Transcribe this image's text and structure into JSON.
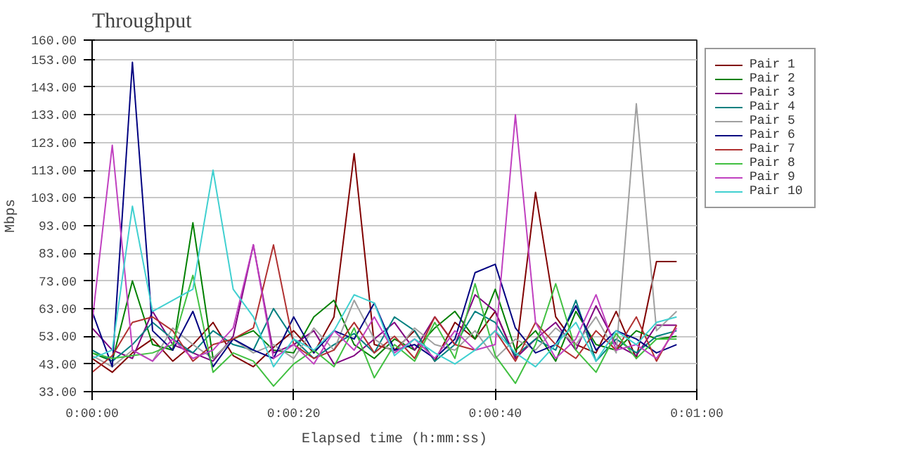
{
  "chart_data": {
    "type": "line",
    "title": "Throughput",
    "xlabel": "Elapsed time (h:mm:ss)",
    "ylabel": "Mbps",
    "x": [
      0,
      2,
      4,
      6,
      8,
      10,
      12,
      14,
      16,
      18,
      20,
      22,
      24,
      26,
      28,
      30,
      32,
      34,
      36,
      38,
      40,
      42,
      44,
      46,
      48,
      50,
      52,
      54,
      56,
      58
    ],
    "xlim": [
      0,
      60
    ],
    "xticks": [
      {
        "value": 0,
        "label": "0:00:00"
      },
      {
        "value": 20,
        "label": "0:00:20"
      },
      {
        "value": 40,
        "label": "0:00:40"
      },
      {
        "value": 60,
        "label": "0:01:00"
      }
    ],
    "ylim": [
      33,
      160
    ],
    "yticks": [
      {
        "value": 33,
        "label": "33.00"
      },
      {
        "value": 43,
        "label": "43.00"
      },
      {
        "value": 53,
        "label": "53.00"
      },
      {
        "value": 63,
        "label": "63.00"
      },
      {
        "value": 73,
        "label": "73.00"
      },
      {
        "value": 83,
        "label": "83.00"
      },
      {
        "value": 93,
        "label": "93.00"
      },
      {
        "value": 103,
        "label": "103.00"
      },
      {
        "value": 113,
        "label": "113.00"
      },
      {
        "value": 123,
        "label": "123.00"
      },
      {
        "value": 133,
        "label": "133.00"
      },
      {
        "value": 143,
        "label": "143.00"
      },
      {
        "value": 153,
        "label": "153.00"
      },
      {
        "value": 160,
        "label": "160.00"
      }
    ],
    "grid": true,
    "legend": "right",
    "line_style": "solid",
    "series": [
      {
        "name": "Pair 1",
        "color": "#800000",
        "values": [
          45,
          40,
          47,
          52,
          44,
          50,
          58,
          46,
          42,
          49,
          55,
          47,
          60,
          119,
          50,
          48,
          55,
          44,
          58,
          52,
          62,
          45,
          105,
          60,
          50,
          47,
          62,
          45,
          80,
          80
        ]
      },
      {
        "name": "Pair 2",
        "color": "#008000",
        "values": [
          47,
          44,
          73,
          50,
          48,
          94,
          45,
          52,
          55,
          48,
          47,
          60,
          66,
          50,
          45,
          52,
          48,
          56,
          62,
          52,
          70,
          48,
          55,
          44,
          62,
          50,
          48,
          55,
          52,
          53
        ]
      },
      {
        "name": "Pair 3",
        "color": "#800080",
        "values": [
          56,
          48,
          45,
          62,
          50,
          47,
          44,
          53,
          86,
          47,
          50,
          55,
          43,
          46,
          52,
          58,
          48,
          60,
          50,
          68,
          62,
          45,
          52,
          58,
          48,
          64,
          50,
          46,
          57,
          57
        ]
      },
      {
        "name": "Pair 4",
        "color": "#008080",
        "values": [
          48,
          44,
          50,
          58,
          52,
          47,
          55,
          50,
          48,
          63,
          52,
          45,
          50,
          54,
          47,
          60,
          55,
          44,
          50,
          62,
          58,
          46,
          52,
          48,
          66,
          44,
          52,
          47,
          53,
          55
        ]
      },
      {
        "name": "Pair 5",
        "color": "#a0a0a0",
        "values": [
          46,
          42,
          48,
          44,
          56,
          50,
          45,
          52,
          47,
          50,
          45,
          56,
          48,
          66,
          52,
          47,
          56,
          50,
          48,
          55,
          45,
          52,
          48,
          56,
          50,
          60,
          47,
          137,
          55,
          62
        ]
      },
      {
        "name": "Pair 6",
        "color": "#000080",
        "values": [
          62,
          42,
          152,
          55,
          48,
          62,
          42,
          52,
          48,
          45,
          60,
          47,
          55,
          52,
          65,
          48,
          50,
          45,
          52,
          76,
          79,
          56,
          47,
          50,
          64,
          48,
          55,
          52,
          47,
          50
        ]
      },
      {
        "name": "Pair 7",
        "color": "#b03030",
        "values": [
          40,
          46,
          58,
          60,
          55,
          44,
          50,
          52,
          56,
          86,
          50,
          45,
          48,
          58,
          47,
          53,
          45,
          60,
          50,
          48,
          55,
          44,
          58,
          50,
          45,
          55,
          48,
          60,
          44,
          57
        ]
      },
      {
        "name": "Pair 8",
        "color": "#40c040",
        "values": [
          47,
          45,
          46,
          47,
          50,
          75,
          40,
          47,
          44,
          35,
          43,
          48,
          42,
          56,
          38,
          50,
          44,
          58,
          45,
          72,
          46,
          36,
          50,
          72,
          48,
          40,
          54,
          45,
          52,
          52
        ]
      },
      {
        "name": "Pair 9",
        "color": "#c040c0",
        "values": [
          58,
          122,
          48,
          44,
          52,
          45,
          48,
          56,
          86,
          45,
          50,
          43,
          55,
          48,
          60,
          47,
          52,
          45,
          55,
          48,
          50,
          133,
          58,
          45,
          52,
          68,
          48,
          50,
          45,
          56
        ]
      },
      {
        "name": "Pair 10",
        "color": "#40d0d0",
        "values": [
          45,
          48,
          100,
          62,
          66,
          70,
          113,
          70,
          60,
          42,
          52,
          48,
          55,
          68,
          65,
          46,
          52,
          47,
          43,
          48,
          55,
          47,
          42,
          50,
          58,
          44,
          55,
          50,
          58,
          60
        ]
      }
    ]
  }
}
